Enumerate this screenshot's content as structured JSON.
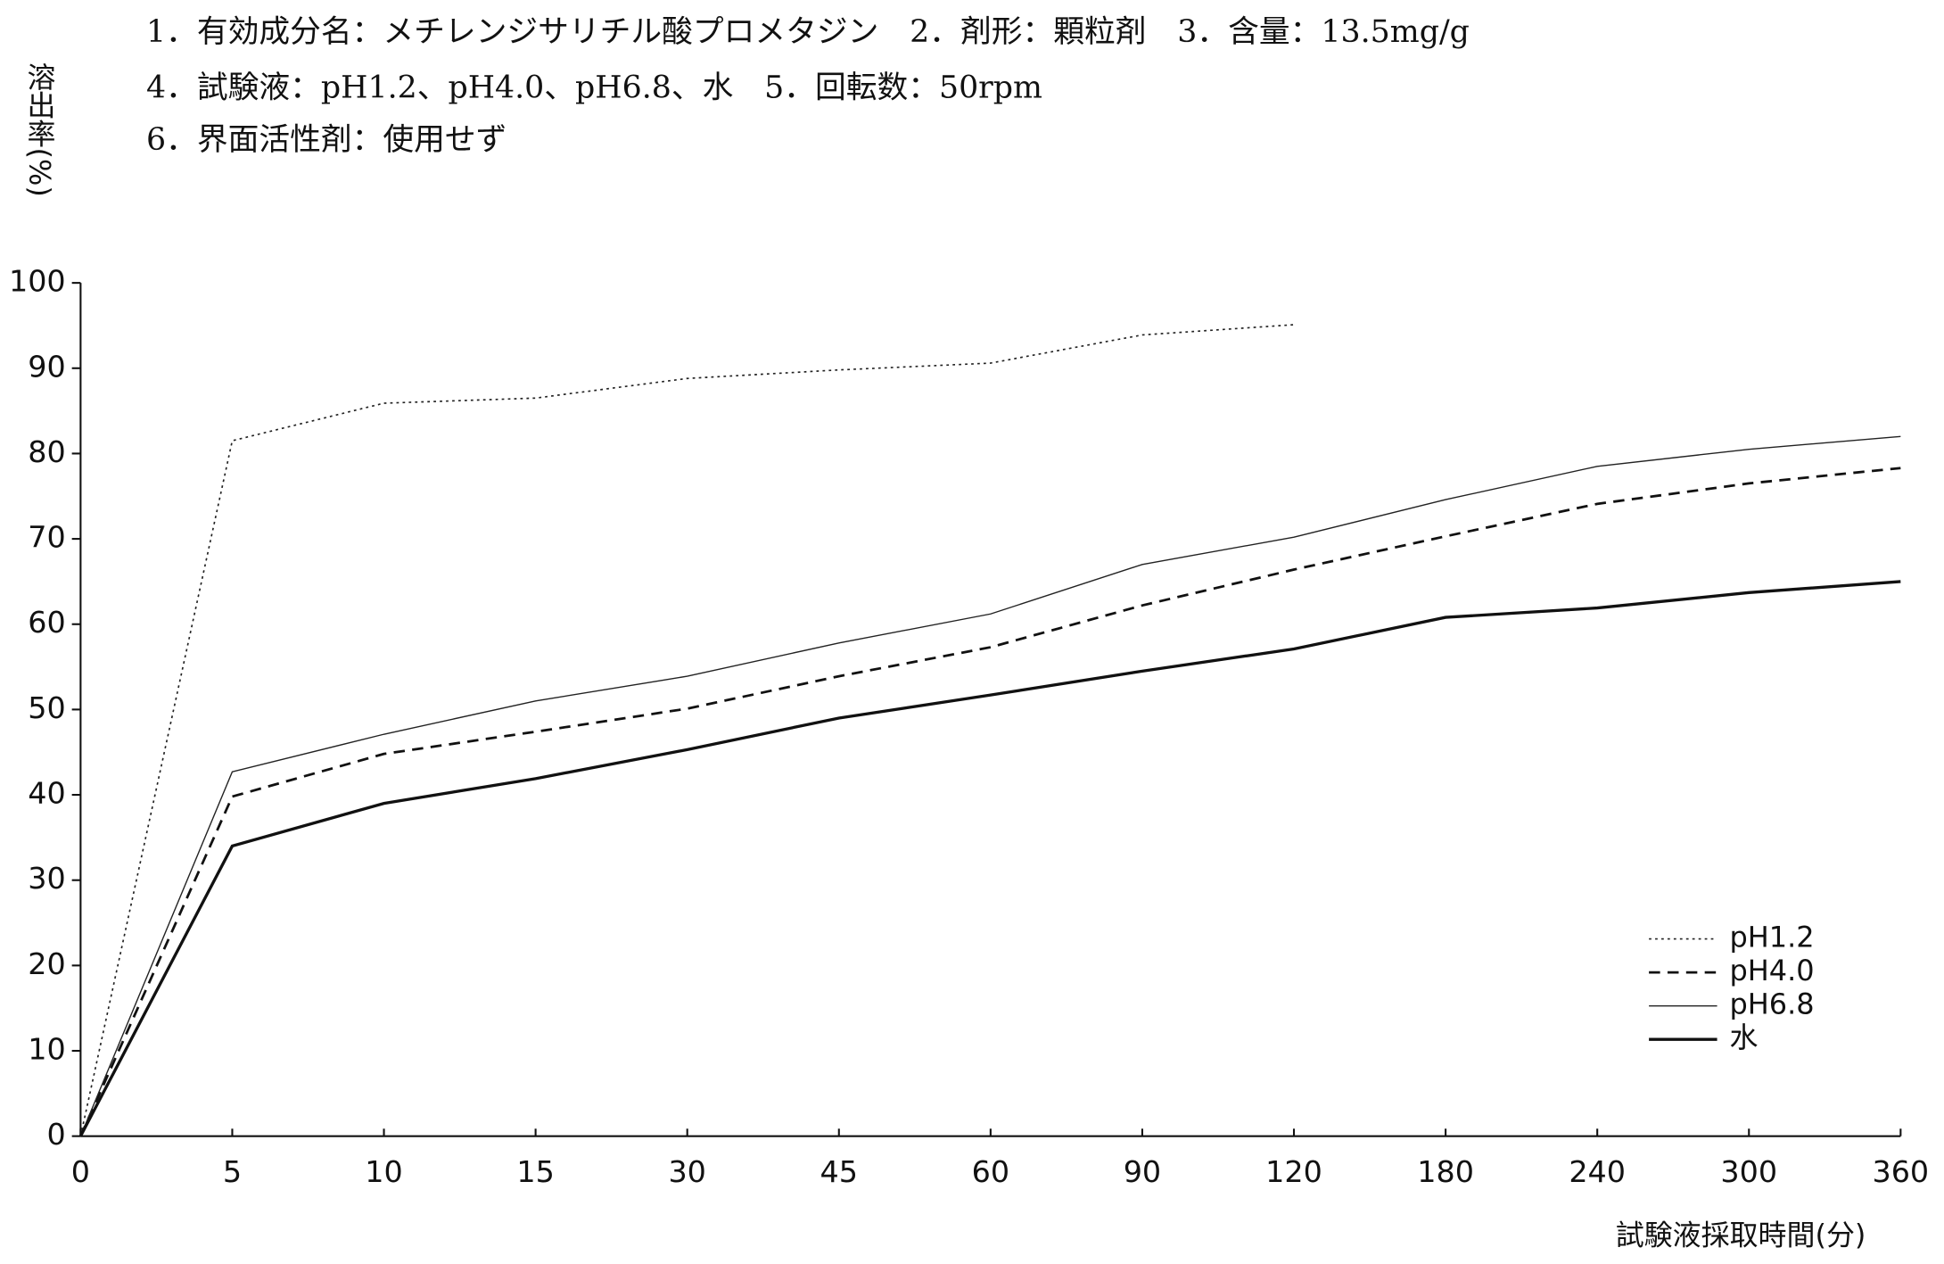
{
  "chart_data": {
    "type": "line",
    "annotations": [
      "1．有効成分名：メチレンジサリチル酸プロメタジン　2．剤形：顆粒剤　3．含量：13.5mg/g",
      "4．試験液：pH1.2、pH4.0、pH6.8、水　5．回転数：50rpm",
      "6．界面活性剤：使用せず"
    ],
    "y_label": "溶出率(%)",
    "x_label": "試験液採取時間(分)",
    "categories": [
      0,
      5,
      10,
      15,
      30,
      45,
      60,
      90,
      120,
      180,
      240,
      300,
      360
    ],
    "ylim": [
      0,
      100
    ],
    "yticks": [
      0,
      10,
      20,
      30,
      40,
      50,
      60,
      70,
      80,
      90,
      100
    ],
    "legend": "lower right",
    "series": [
      {
        "name": "pH1.2",
        "color": "#222222",
        "linestyle": "dotted",
        "linewidth": 1.2,
        "values": [
          0,
          81.5,
          85.9,
          86.5,
          88.8,
          89.8,
          90.6,
          93.9,
          95.1,
          null,
          null,
          null,
          null
        ]
      },
      {
        "name": "pH4.0",
        "color": "#111111",
        "linestyle": "dashed",
        "linewidth": 2,
        "values": [
          0,
          39.8,
          44.8,
          47.4,
          50.1,
          53.9,
          57.3,
          62.2,
          66.4,
          70.3,
          74.1,
          76.5,
          78.3
        ]
      },
      {
        "name": "pH6.8",
        "color": "#222222",
        "linestyle": "solid",
        "linewidth": 1,
        "values": [
          0,
          42.7,
          47.1,
          51.0,
          53.9,
          57.8,
          61.2,
          67.0,
          70.2,
          74.6,
          78.5,
          80.5,
          82.0
        ]
      },
      {
        "name": "水",
        "color": "#111111",
        "linestyle": "solid",
        "linewidth": 2.4,
        "values": [
          0,
          34.0,
          39.0,
          41.9,
          45.3,
          49.0,
          51.7,
          54.5,
          57.1,
          60.8,
          61.9,
          63.7,
          65.0
        ]
      }
    ]
  }
}
